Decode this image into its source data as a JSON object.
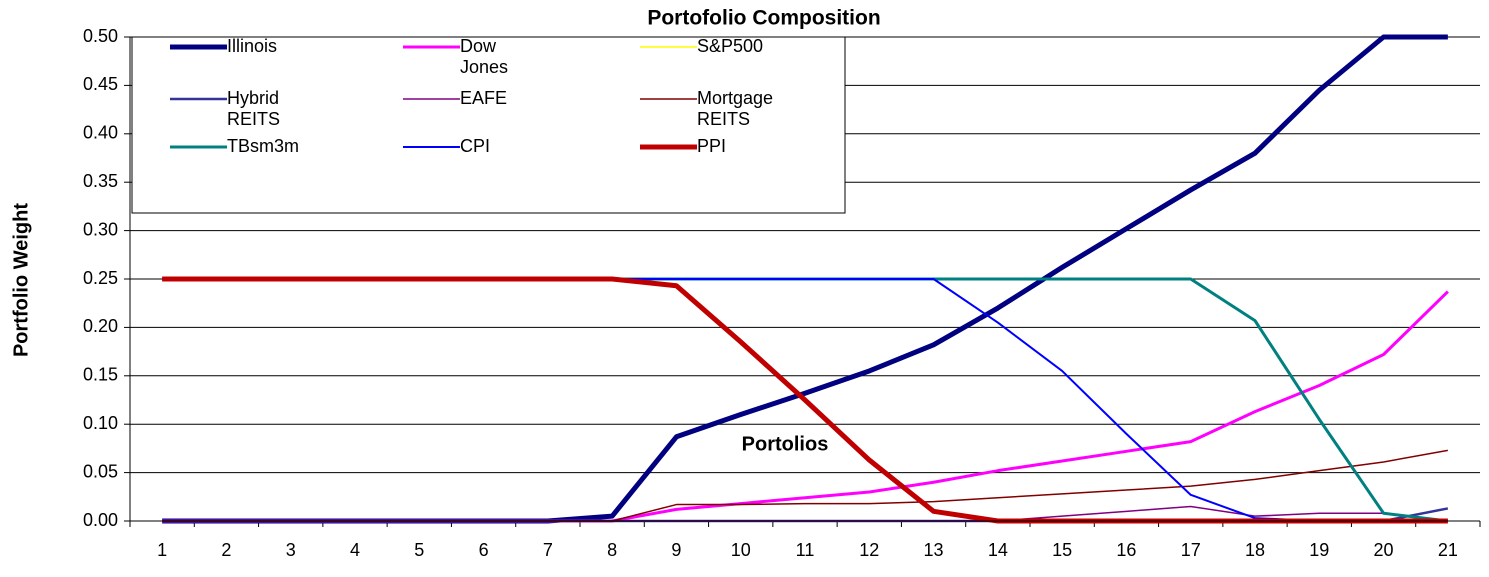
{
  "chart_data": {
    "type": "line",
    "title": "Portofolio Composition",
    "y_label": "Portfolio Weight",
    "annotation": "Portolios",
    "categories": [
      "1",
      "2",
      "3",
      "4",
      "5",
      "6",
      "7",
      "8",
      "9",
      "10",
      "11",
      "12",
      "13",
      "14",
      "15",
      "16",
      "17",
      "18",
      "19",
      "20",
      "21"
    ],
    "series": [
      {
        "name": "Illinois",
        "color": "#000080",
        "linewidth": 5,
        "values": [
          0,
          0,
          0,
          0,
          0,
          0,
          0,
          0.005,
          0.087,
          0.11,
          0.132,
          0.155,
          0.182,
          0.22,
          0.262,
          0.302,
          0.342,
          0.38,
          0.445,
          0.5,
          0.5
        ]
      },
      {
        "name": "Dow Jones",
        "color": "#ff00ff",
        "linewidth": 3,
        "values": [
          0,
          0,
          0,
          0,
          0,
          0,
          0,
          0,
          0.012,
          0.018,
          0.024,
          0.03,
          0.04,
          0.052,
          0.062,
          0.072,
          0.082,
          0.113,
          0.14,
          0.172,
          0.237
        ]
      },
      {
        "name": "S&P500",
        "color": "#ffff00",
        "linewidth": 1.5,
        "values": [
          0,
          0,
          0,
          0,
          0,
          0,
          0,
          0,
          0,
          0,
          0,
          0,
          0,
          0,
          0,
          0,
          0,
          0,
          0,
          0,
          0
        ]
      },
      {
        "name": "Hybrid REITS",
        "color": "#333399",
        "linewidth": 2.5,
        "values": [
          0,
          0,
          0,
          0,
          0,
          0,
          0,
          0,
          0,
          0,
          0,
          0,
          0,
          0,
          0,
          0,
          0,
          0,
          0,
          0,
          0.013
        ]
      },
      {
        "name": "EAFE",
        "color": "#800080",
        "linewidth": 1.5,
        "values": [
          0,
          0,
          0,
          0,
          0,
          0,
          0,
          0,
          0,
          0,
          0,
          0,
          0,
          0,
          0.005,
          0.01,
          0.015,
          0.005,
          0.008,
          0.008,
          0
        ]
      },
      {
        "name": "Mortgage REITS",
        "color": "#800000",
        "linewidth": 1.5,
        "values": [
          0,
          0,
          0,
          0,
          0,
          0,
          0,
          0,
          0.017,
          0.017,
          0.018,
          0.018,
          0.02,
          0.024,
          0.028,
          0.032,
          0.036,
          0.043,
          0.052,
          0.061,
          0.073
        ]
      },
      {
        "name": "TBsm3m",
        "color": "#008080",
        "linewidth": 3,
        "values": [
          0.25,
          0.25,
          0.25,
          0.25,
          0.25,
          0.25,
          0.25,
          0.25,
          0.25,
          0.25,
          0.25,
          0.25,
          0.25,
          0.25,
          0.25,
          0.25,
          0.25,
          0.207,
          0.105,
          0.008,
          0
        ]
      },
      {
        "name": "CPI",
        "color": "#0000ff",
        "linewidth": 2,
        "values": [
          0.25,
          0.25,
          0.25,
          0.25,
          0.25,
          0.25,
          0.25,
          0.25,
          0.25,
          0.25,
          0.25,
          0.25,
          0.25,
          0.205,
          0.155,
          0.09,
          0.027,
          0.003,
          0,
          0,
          0
        ]
      },
      {
        "name": "PPI",
        "color": "#c00000",
        "linewidth": 5,
        "values": [
          0.25,
          0.25,
          0.25,
          0.25,
          0.25,
          0.25,
          0.25,
          0.25,
          0.243,
          0.185,
          0.125,
          0.063,
          0.01,
          0,
          0,
          0,
          0,
          0,
          0,
          0,
          0
        ]
      }
    ],
    "ylim": [
      0,
      0.5
    ],
    "yticks": [
      {
        "value": 0,
        "label": "0.00"
      },
      {
        "value": 0.05,
        "label": "0.05"
      },
      {
        "value": 0.1,
        "label": "0.10"
      },
      {
        "value": 0.15,
        "label": "0.15"
      },
      {
        "value": 0.2,
        "label": "0.20"
      },
      {
        "value": 0.25,
        "label": "0.25"
      },
      {
        "value": 0.3,
        "label": "0.30"
      },
      {
        "value": 0.35,
        "label": "0.35"
      },
      {
        "value": 0.4,
        "label": "0.40"
      },
      {
        "value": 0.45,
        "label": "0.45"
      },
      {
        "value": 0.5,
        "label": "0.50"
      }
    ],
    "grid": true
  }
}
